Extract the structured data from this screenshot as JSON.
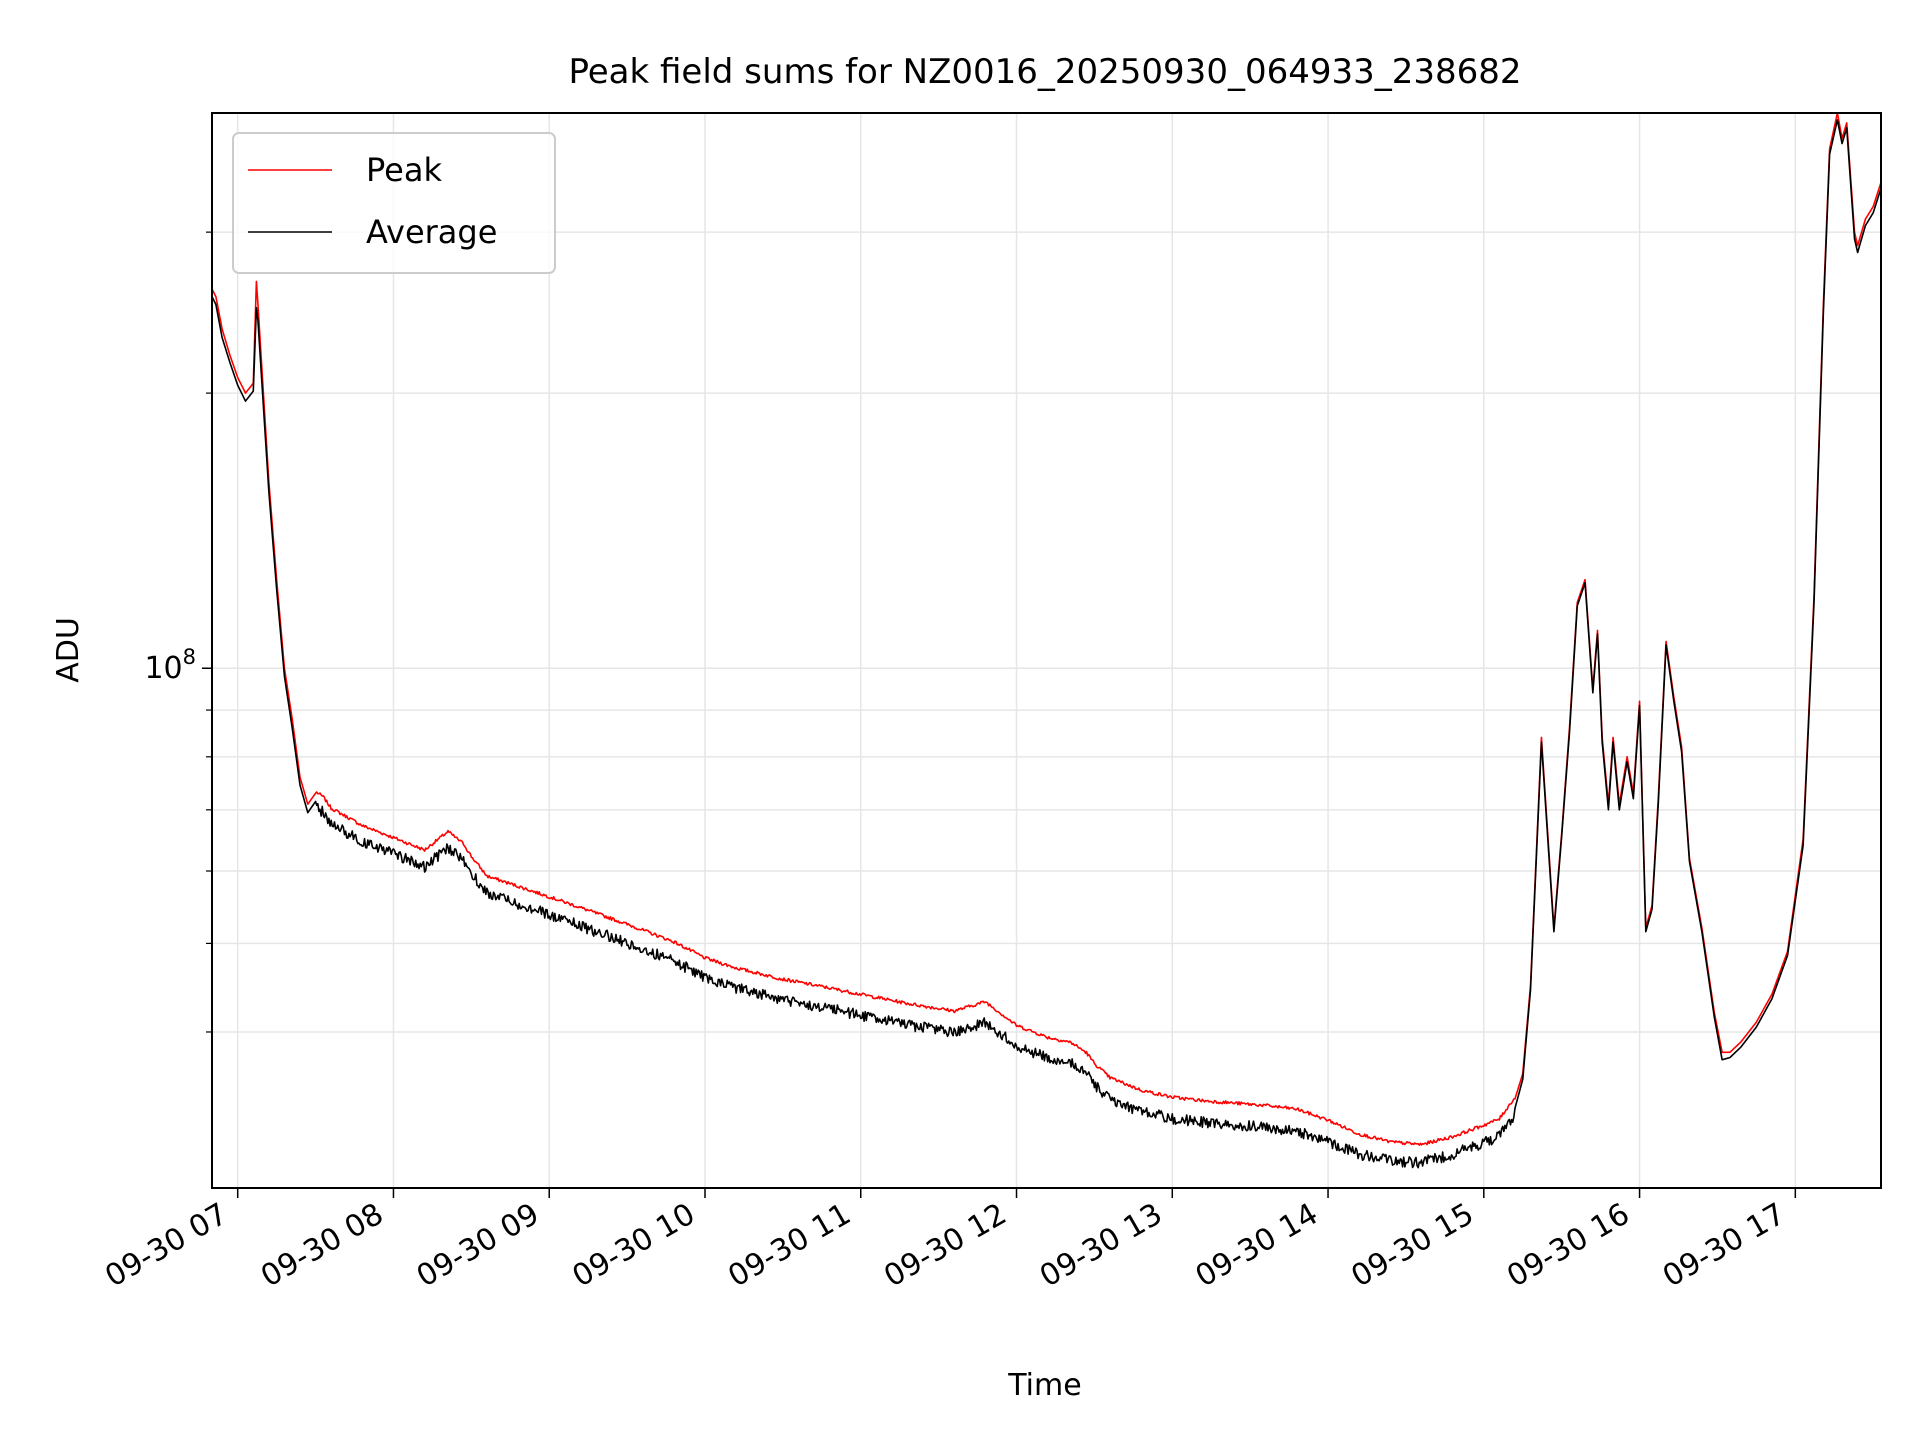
{
  "chart_data": {
    "type": "line",
    "title": "Peak field sums for NZ0016_20250930_064933_238682",
    "xlabel": "Time",
    "ylabel": "ADU",
    "yscale": "log",
    "ylim": [
      27000000,
      405000000
    ],
    "xlim_hours": [
      6.835,
      17.55
    ],
    "x_tick_labels": [
      "09-30 07",
      "09-30 08",
      "09-30 09",
      "09-30 10",
      "09-30 11",
      "09-30 12",
      "09-30 13",
      "09-30 14",
      "09-30 15",
      "09-30 16",
      "09-30 17"
    ],
    "x_tick_hours": [
      7,
      8,
      9,
      10,
      11,
      12,
      13,
      14,
      15,
      16,
      17
    ],
    "y_major_ticks": [
      {
        "value": 100000000,
        "label_base": "10",
        "label_exp": "8"
      }
    ],
    "y_minor_ticks": [
      40000000,
      50000000,
      60000000,
      70000000,
      80000000,
      90000000,
      200000000,
      300000000
    ],
    "grid": true,
    "legend": "top-left",
    "series": [
      {
        "name": "Peak",
        "color": "#ff0000",
        "x_hours": [
          6.835,
          6.86,
          6.9,
          6.95,
          7.0,
          7.05,
          7.1,
          7.12,
          7.13,
          7.15,
          7.2,
          7.25,
          7.3,
          7.35,
          7.4,
          7.45,
          7.5,
          7.55,
          7.6,
          7.7,
          7.8,
          8.0,
          8.2,
          8.35,
          8.45,
          8.5,
          8.6,
          8.8,
          9.0,
          9.2,
          9.4,
          9.6,
          9.8,
          10.0,
          10.2,
          10.5,
          10.8,
          11.0,
          11.3,
          11.6,
          11.8,
          12.0,
          12.2,
          12.35,
          12.45,
          12.5,
          12.6,
          12.8,
          13.0,
          13.2,
          13.4,
          13.6,
          13.8,
          14.0,
          14.2,
          14.4,
          14.6,
          14.8,
          15.0,
          15.1,
          15.2,
          15.25,
          15.3,
          15.37,
          15.45,
          15.5,
          15.55,
          15.6,
          15.65,
          15.7,
          15.73,
          15.76,
          15.8,
          15.83,
          15.87,
          15.92,
          15.96,
          16.0,
          16.04,
          16.08,
          16.12,
          16.17,
          16.22,
          16.27,
          16.32,
          16.4,
          16.48,
          16.53,
          16.58,
          16.65,
          16.75,
          16.85,
          16.95,
          17.05,
          17.12,
          17.18,
          17.22,
          17.27,
          17.3,
          17.33,
          17.38,
          17.4,
          17.45,
          17.5,
          17.55
        ],
        "values": [
          260000000,
          255000000,
          235000000,
          220000000,
          208000000,
          200000000,
          205000000,
          265000000,
          250000000,
          220000000,
          160000000,
          125000000,
          100000000,
          88000000,
          76000000,
          71000000,
          73000000,
          72000000,
          70000000,
          68500000,
          67000000,
          65000000,
          63000000,
          66000000,
          64000000,
          62000000,
          59000000,
          57500000,
          56000000,
          54500000,
          53000000,
          51500000,
          50000000,
          48000000,
          46800000,
          45500000,
          44500000,
          43800000,
          42800000,
          42000000,
          43000000,
          40500000,
          39300000,
          38800000,
          37800000,
          36800000,
          35500000,
          34400000,
          33800000,
          33500000,
          33300000,
          33100000,
          32800000,
          31900000,
          30800000,
          30200000,
          30000000,
          30600000,
          31500000,
          32000000,
          33800000,
          36000000,
          45000000,
          84000000,
          52000000,
          66000000,
          86000000,
          118000000,
          125000000,
          95000000,
          110000000,
          84000000,
          71000000,
          84000000,
          71000000,
          80000000,
          73000000,
          92000000,
          52000000,
          55000000,
          72000000,
          107000000,
          93000000,
          82000000,
          62000000,
          52000000,
          42000000,
          38000000,
          38000000,
          39000000,
          41000000,
          44000000,
          49000000,
          65000000,
          120000000,
          250000000,
          370000000,
          405000000,
          380000000,
          395000000,
          300000000,
          290000000,
          310000000,
          320000000,
          340000000
        ]
      },
      {
        "name": "Average",
        "color": "#000000",
        "x_hours": [
          6.835,
          6.86,
          6.9,
          6.95,
          7.0,
          7.05,
          7.1,
          7.12,
          7.13,
          7.15,
          7.2,
          7.25,
          7.3,
          7.35,
          7.4,
          7.45,
          7.5,
          7.55,
          7.6,
          7.7,
          7.8,
          8.0,
          8.2,
          8.35,
          8.45,
          8.5,
          8.6,
          8.8,
          9.0,
          9.2,
          9.4,
          9.6,
          9.8,
          10.0,
          10.2,
          10.5,
          10.8,
          11.0,
          11.3,
          11.6,
          11.8,
          12.0,
          12.2,
          12.35,
          12.45,
          12.5,
          12.6,
          12.8,
          13.0,
          13.2,
          13.4,
          13.6,
          13.8,
          14.0,
          14.2,
          14.4,
          14.6,
          14.8,
          15.0,
          15.1,
          15.2,
          15.25,
          15.3,
          15.37,
          15.45,
          15.5,
          15.55,
          15.6,
          15.65,
          15.7,
          15.73,
          15.76,
          15.8,
          15.83,
          15.87,
          15.92,
          15.96,
          16.0,
          16.04,
          16.08,
          16.12,
          16.17,
          16.22,
          16.27,
          16.32,
          16.4,
          16.48,
          16.53,
          16.58,
          16.65,
          16.75,
          16.85,
          16.95,
          17.05,
          17.12,
          17.18,
          17.22,
          17.27,
          17.3,
          17.33,
          17.38,
          17.4,
          17.45,
          17.5,
          17.55
        ],
        "values": [
          255000000,
          250000000,
          230000000,
          216000000,
          204000000,
          196000000,
          201000000,
          248000000,
          240000000,
          212000000,
          156000000,
          122000000,
          98000000,
          86000000,
          74500000,
          69500000,
          71500000,
          70500000,
          68500000,
          67000000,
          65500000,
          63500000,
          61500000,
          64500000,
          62500000,
          60500000,
          57500000,
          56000000,
          54500000,
          53000000,
          51500000,
          50000000,
          48500000,
          46500000,
          45300000,
          44000000,
          43000000,
          42300000,
          41300000,
          40500000,
          41500000,
          39200000,
          38000000,
          37500000,
          36500000,
          35500000,
          34200000,
          33200000,
          32600000,
          32300000,
          32100000,
          31900000,
          31600000,
          30800000,
          29800000,
          29300000,
          29200000,
          29800000,
          30700000,
          31200000,
          33000000,
          35500000,
          44500000,
          83000000,
          51500000,
          65500000,
          85000000,
          117000000,
          124000000,
          94000000,
          109000000,
          83000000,
          70000000,
          83000000,
          70000000,
          79000000,
          72000000,
          91000000,
          51500000,
          54500000,
          71000000,
          106000000,
          92000000,
          81000000,
          61500000,
          51500000,
          41500000,
          37300000,
          37500000,
          38500000,
          40500000,
          43500000,
          48500000,
          64000000,
          118000000,
          245000000,
          365000000,
          398000000,
          375000000,
          390000000,
          295000000,
          285000000,
          305000000,
          315000000,
          335000000
        ]
      }
    ]
  }
}
